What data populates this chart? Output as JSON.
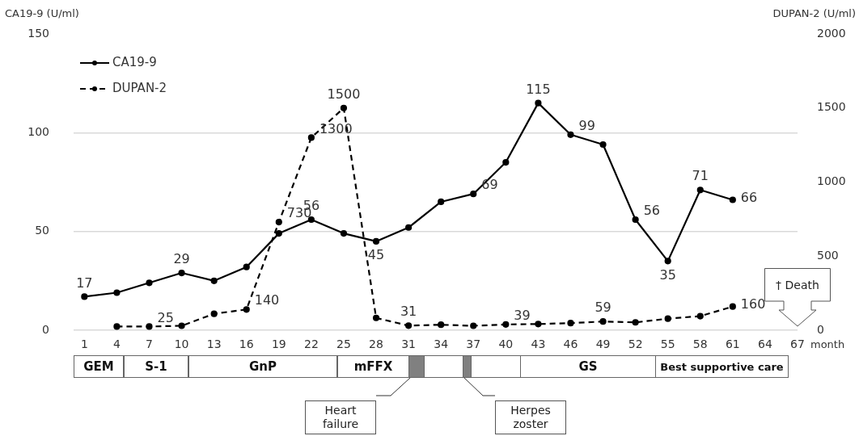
{
  "chart_data": {
    "type": "line",
    "ylabel": "CA19-9 (U/ml)",
    "y2label": "DUPAN-2 (U/ml)",
    "xlabel": "month",
    "x": [
      1,
      4,
      7,
      10,
      13,
      16,
      19,
      22,
      25,
      28,
      31,
      34,
      37,
      40,
      43,
      46,
      49,
      52,
      55,
      58,
      61
    ],
    "xlim": [
      0,
      67
    ],
    "xticks": [
      1,
      4,
      7,
      10,
      13,
      16,
      19,
      22,
      25,
      28,
      31,
      34,
      37,
      40,
      43,
      46,
      49,
      52,
      55,
      58,
      61,
      64,
      67
    ],
    "ylim": [
      0,
      150
    ],
    "yticks": [
      0,
      50,
      100,
      150
    ],
    "y2lim": [
      0,
      2000
    ],
    "y2ticks": [
      0,
      500,
      1000,
      1500,
      2000
    ],
    "grid": "y",
    "legend": "top left",
    "marker": "circle",
    "series": [
      {
        "name": "CA19-9",
        "color": "#000000",
        "line_style": "solid",
        "values": [
          17,
          19,
          24,
          29,
          25,
          32,
          49,
          56,
          49,
          45,
          52,
          65,
          69,
          85,
          115,
          99,
          94,
          56,
          35,
          71,
          66
        ],
        "value_labels": [
          "17",
          null,
          null,
          "29",
          null,
          null,
          null,
          "56",
          null,
          "45",
          null,
          null,
          "69",
          null,
          "115",
          "99",
          null,
          "56",
          "35",
          "71",
          "66"
        ]
      },
      {
        "name": "DUPAN-2",
        "color": "#000000",
        "line_style": "dashed",
        "axis": "y2",
        "values": [
          null,
          25,
          25,
          30,
          111,
          140,
          730,
          1300,
          1500,
          83,
          31,
          37,
          30,
          39,
          42,
          48,
          59,
          53,
          78,
          95,
          160
        ],
        "value_labels": [
          null,
          null,
          "25",
          null,
          null,
          "140",
          "730",
          "1300",
          "1500",
          null,
          "31",
          null,
          null,
          "39",
          null,
          null,
          "59",
          null,
          null,
          null,
          "160"
        ]
      }
    ],
    "annotations": [
      "GEM",
      "S-1",
      "GnP",
      "mFFX",
      "GS",
      "Best supportive care",
      "Heart failure",
      "Herpes zoster",
      "† Death"
    ]
  }
}
